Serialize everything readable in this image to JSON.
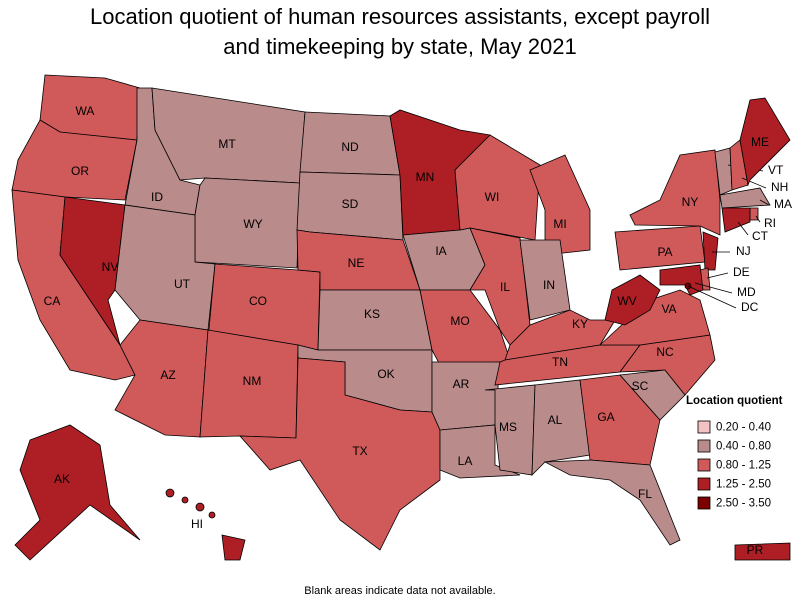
{
  "title": "Location quotient of human resources assistants, except payroll and timekeeping by state, May 2021",
  "note": "Blank areas indicate data not available.",
  "legend": {
    "title": "Location quotient",
    "items": [
      {
        "label": "0.20 - 0.40",
        "color": "#f4c2c2"
      },
      {
        "label": "0.40 - 0.80",
        "color": "#b98b8b"
      },
      {
        "label": "0.80 - 1.25",
        "color": "#d05a5a"
      },
      {
        "label": "1.25 - 2.50",
        "color": "#ad1f24"
      },
      {
        "label": "2.50 - 3.50",
        "color": "#7d0000"
      }
    ]
  },
  "states": [
    {
      "label": "WA",
      "color": "#d05a5a"
    },
    {
      "label": "OR",
      "color": "#d05a5a"
    },
    {
      "label": "CA",
      "color": "#d05a5a"
    },
    {
      "label": "NV",
      "color": "#ad1f24"
    },
    {
      "label": "ID",
      "color": "#b98b8b"
    },
    {
      "label": "MT",
      "color": "#b98b8b"
    },
    {
      "label": "WY",
      "color": "#b98b8b"
    },
    {
      "label": "UT",
      "color": "#b98b8b"
    },
    {
      "label": "AZ",
      "color": "#d05a5a"
    },
    {
      "label": "CO",
      "color": "#d05a5a"
    },
    {
      "label": "NM",
      "color": "#d05a5a"
    },
    {
      "label": "ND",
      "color": "#b98b8b"
    },
    {
      "label": "SD",
      "color": "#b98b8b"
    },
    {
      "label": "NE",
      "color": "#d05a5a"
    },
    {
      "label": "KS",
      "color": "#b98b8b"
    },
    {
      "label": "OK",
      "color": "#b98b8b"
    },
    {
      "label": "TX",
      "color": "#d05a5a"
    },
    {
      "label": "MN",
      "color": "#ad1f24"
    },
    {
      "label": "IA",
      "color": "#b98b8b"
    },
    {
      "label": "MO",
      "color": "#d05a5a"
    },
    {
      "label": "AR",
      "color": "#b98b8b"
    },
    {
      "label": "LA",
      "color": "#b98b8b"
    },
    {
      "label": "WI",
      "color": "#d05a5a"
    },
    {
      "label": "IL",
      "color": "#d05a5a"
    },
    {
      "label": "MS",
      "color": "#b98b8b"
    },
    {
      "label": "MI",
      "color": "#d05a5a"
    },
    {
      "label": "IN",
      "color": "#b98b8b"
    },
    {
      "label": "KY",
      "color": "#d05a5a"
    },
    {
      "label": "TN",
      "color": "#d05a5a"
    },
    {
      "label": "AL",
      "color": "#b98b8b"
    },
    {
      "label": "GA",
      "color": "#d05a5a"
    },
    {
      "label": "FL",
      "color": "#b98b8b"
    },
    {
      "label": "SC",
      "color": "#b98b8b"
    },
    {
      "label": "NC",
      "color": "#d05a5a"
    },
    {
      "label": "VA",
      "color": "#d05a5a"
    },
    {
      "label": "WV",
      "color": "#ad1f24"
    },
    {
      "label": "PA",
      "color": "#d05a5a"
    },
    {
      "label": "NY",
      "color": "#d05a5a"
    },
    {
      "label": "NJ",
      "color": "#ad1f24"
    },
    {
      "label": "DE",
      "color": "#d05a5a"
    },
    {
      "label": "MD",
      "color": "#ad1f24"
    },
    {
      "label": "DC",
      "color": "#7d0000"
    },
    {
      "label": "VT",
      "color": "#b98b8b"
    },
    {
      "label": "NH",
      "color": "#d05a5a"
    },
    {
      "label": "ME",
      "color": "#ad1f24"
    },
    {
      "label": "MA",
      "color": "#b98b8b"
    },
    {
      "label": "RI",
      "color": "#d05a5a"
    },
    {
      "label": "CT",
      "color": "#ad1f24"
    },
    {
      "label": "AK",
      "color": "#ad1f24"
    },
    {
      "label": "HI",
      "color": "#ad1f24"
    },
    {
      "label": "PR",
      "color": "#ad1f24"
    }
  ]
}
